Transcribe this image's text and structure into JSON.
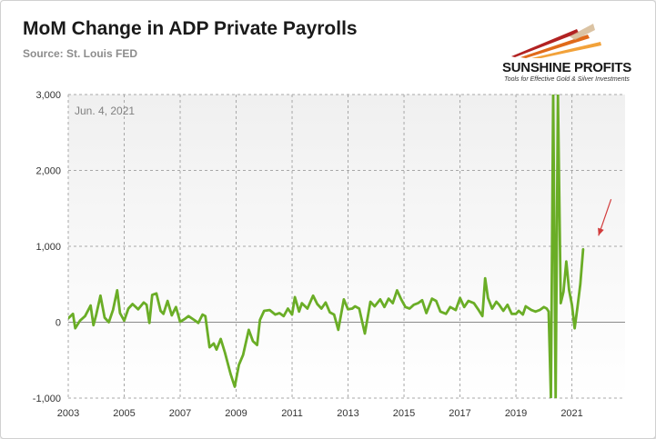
{
  "header": {
    "title": "MoM Change in ADP Private Payrolls",
    "subtitle": "Source: St. Louis FED"
  },
  "logo": {
    "name": "SUNSHINE PROFITS",
    "tagline": "Tools for Effective Gold & Silver Investments"
  },
  "colors": {
    "line": "#6aad26",
    "arrow": "#d23c3c",
    "grid": "#a8a8a8"
  },
  "chart_data": {
    "type": "line",
    "title": "MoM Change in ADP Private Payrolls",
    "xlabel": "",
    "ylabel": "",
    "xlim": [
      2003.0,
      2022.9
    ],
    "ylim": [
      -1000,
      3000
    ],
    "grid": true,
    "y_ticks": [
      -1000,
      0,
      1000,
      2000,
      3000
    ],
    "y_tick_labels": [
      "-1,000",
      "0",
      "1,000",
      "2,000",
      "3,000"
    ],
    "x_ticks": [
      2003,
      2005,
      2007,
      2009,
      2011,
      2013,
      2015,
      2017,
      2019,
      2021
    ],
    "x_tick_labels": [
      "2003",
      "2005",
      "2007",
      "2009",
      "2011",
      "2013",
      "2015",
      "2017",
      "2019",
      "2021"
    ],
    "annotations": [
      {
        "text": "Jun. 4, 2021"
      },
      {
        "type": "arrow",
        "from": [
          2022.4,
          1620
        ],
        "to": [
          2021.95,
          1140
        ]
      }
    ],
    "series": [
      {
        "x": [
          2003.0,
          2003.17,
          2003.25,
          2003.42,
          2003.6,
          2003.8,
          2003.9,
          2004.0,
          2004.15,
          2004.3,
          2004.45,
          2004.6,
          2004.75,
          2004.85,
          2005.0,
          2005.15,
          2005.3,
          2005.5,
          2005.7,
          2005.8,
          2005.9,
          2006.0,
          2006.15,
          2006.3,
          2006.4,
          2006.55,
          2006.7,
          2006.85,
          2007.0,
          2007.15,
          2007.3,
          2007.5,
          2007.65,
          2007.8,
          2007.9,
          2008.05,
          2008.2,
          2008.3,
          2008.45,
          2008.6,
          2008.8,
          2008.95,
          2009.1,
          2009.25,
          2009.45,
          2009.6,
          2009.75,
          2009.85,
          2010.0,
          2010.2,
          2010.4,
          2010.55,
          2010.7,
          2010.85,
          2011.0,
          2011.1,
          2011.25,
          2011.35,
          2011.55,
          2011.75,
          2011.9,
          2012.05,
          2012.2,
          2012.35,
          2012.5,
          2012.65,
          2012.85,
          2013.0,
          2013.15,
          2013.25,
          2013.4,
          2013.6,
          2013.8,
          2013.95,
          2014.15,
          2014.3,
          2014.45,
          2014.6,
          2014.75,
          2014.9,
          2015.05,
          2015.2,
          2015.35,
          2015.5,
          2015.65,
          2015.8,
          2016.0,
          2016.15,
          2016.3,
          2016.5,
          2016.65,
          2016.85,
          2017.0,
          2017.15,
          2017.3,
          2017.5,
          2017.65,
          2017.8,
          2017.9,
          2018.0,
          2018.15,
          2018.3,
          2018.4,
          2018.55,
          2018.7,
          2018.85,
          2019.0,
          2019.1,
          2019.25,
          2019.35,
          2019.55,
          2019.7,
          2019.85,
          2020.0,
          2020.1,
          2020.17,
          2020.25,
          2020.33,
          2020.42,
          2020.5,
          2020.6,
          2020.7,
          2020.8,
          2020.9,
          2021.0,
          2021.1,
          2021.2,
          2021.3,
          2021.4
        ],
        "y": [
          50,
          110,
          -80,
          20,
          80,
          220,
          -40,
          100,
          350,
          60,
          0,
          160,
          420,
          120,
          20,
          180,
          240,
          170,
          260,
          230,
          -10,
          360,
          380,
          150,
          110,
          280,
          90,
          200,
          5,
          40,
          80,
          30,
          -10,
          100,
          80,
          -330,
          -280,
          -360,
          -220,
          -400,
          -680,
          -850,
          -560,
          -430,
          -100,
          -250,
          -300,
          30,
          150,
          160,
          100,
          120,
          80,
          180,
          100,
          330,
          140,
          250,
          180,
          350,
          240,
          180,
          260,
          130,
          100,
          -100,
          300,
          170,
          180,
          210,
          180,
          -150,
          270,
          210,
          300,
          200,
          310,
          250,
          420,
          300,
          200,
          180,
          230,
          250,
          290,
          120,
          310,
          280,
          140,
          110,
          200,
          160,
          320,
          200,
          280,
          250,
          170,
          80,
          580,
          320,
          180,
          270,
          230,
          150,
          230,
          110,
          110,
          150,
          100,
          210,
          160,
          140,
          160,
          200,
          180,
          140,
          -1000,
          3000,
          -1000,
          3000,
          250,
          400,
          800,
          420,
          230,
          -80,
          200,
          500,
          960
        ]
      }
    ]
  }
}
